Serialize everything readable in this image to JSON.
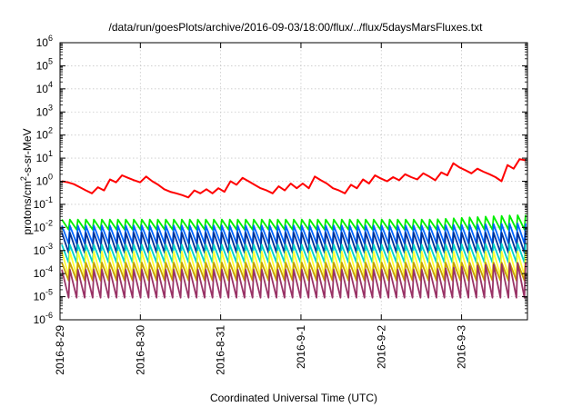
{
  "chart_data": {
    "type": "line",
    "title": "/data/run/goesPlots/archive/2016-09-03/18:00/flux/../flux/5daysMarsFluxes.txt",
    "xlabel": "Coordinated Universal Time (UTC)",
    "ylabel_base": "protons/cm",
    "ylabel_sup": "2",
    "ylabel_rest": "-s-sr-MeV",
    "y_scale": "log",
    "ylim": [
      1e-06,
      1000000.0
    ],
    "y_ticks": [
      {
        "base": "10",
        "exp": "-6"
      },
      {
        "base": "10",
        "exp": "-5"
      },
      {
        "base": "10",
        "exp": "-4"
      },
      {
        "base": "10",
        "exp": "-3"
      },
      {
        "base": "10",
        "exp": "-2"
      },
      {
        "base": "10",
        "exp": "-1"
      },
      {
        "base": "10",
        "exp": "0"
      },
      {
        "base": "10",
        "exp": "1"
      },
      {
        "base": "10",
        "exp": "2"
      },
      {
        "base": "10",
        "exp": "3"
      },
      {
        "base": "10",
        "exp": "4"
      },
      {
        "base": "10",
        "exp": "5"
      },
      {
        "base": "10",
        "exp": "6"
      }
    ],
    "x_range_days": 5.82,
    "x_ticks": [
      "2016-8-29",
      "2016-8-30",
      "2016-8-31",
      "2016-9-1",
      "2016-9-2",
      "2016-9-3"
    ],
    "grid": true,
    "sawtooth_cycles": 58,
    "series": [
      {
        "color": "#ff0000",
        "values": [
          1.0,
          0.9,
          0.75,
          0.55,
          0.4,
          0.3,
          0.55,
          0.4,
          1.2,
          0.9,
          1.8,
          1.4,
          1.1,
          0.9,
          1.6,
          1.0,
          0.7,
          0.45,
          0.35,
          0.3,
          0.25,
          0.2,
          0.4,
          0.3,
          0.45,
          0.3,
          0.5,
          0.35,
          1.0,
          0.7,
          1.4,
          1.0,
          0.7,
          0.5,
          0.4,
          0.3,
          0.6,
          0.4,
          0.8,
          0.5,
          0.8,
          0.5,
          1.6,
          1.1,
          0.8,
          0.5,
          0.4,
          0.3,
          0.7,
          0.5,
          1.2,
          0.8,
          1.8,
          1.3,
          1.0,
          1.5,
          1.1,
          2.0,
          1.5,
          1.2,
          2.2,
          1.6,
          1.1,
          2.4,
          1.8,
          6.0,
          4.0,
          3.0,
          2.2,
          3.5,
          2.6,
          2.0,
          1.5,
          1.0,
          5.0,
          3.5,
          9.0,
          8.0
        ]
      },
      {
        "color": "#00ee00",
        "low": 0.008,
        "high": 0.022,
        "end_high": 0.035
      },
      {
        "color": "#0066ff",
        "low": 0.002,
        "high": 0.012,
        "end_high": 0.015
      },
      {
        "color": "#003399",
        "low": 0.0008,
        "high": 0.006,
        "end_high": 0.006
      },
      {
        "color": "#00d0c8",
        "low": 0.0003,
        "high": 0.0018,
        "end_high": 0.002
      },
      {
        "color": "#ffff33",
        "low": 8e-05,
        "high": 0.0009,
        "end_high": 0.0009
      },
      {
        "color": "#c8a000",
        "low": 5e-05,
        "high": 0.0003,
        "end_high": 0.0003
      },
      {
        "color": "#993366",
        "low": 9e-06,
        "high": 0.00015,
        "end_high": 0.0003
      }
    ]
  }
}
